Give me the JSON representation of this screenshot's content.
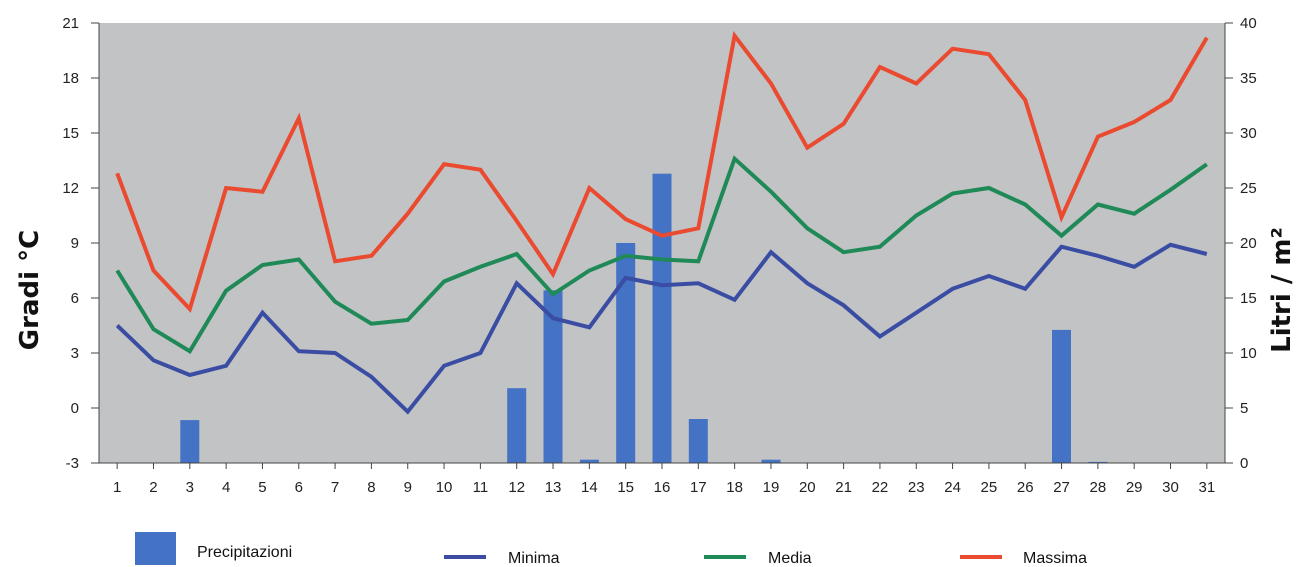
{
  "chart_data": {
    "type": "bar+line",
    "categories": [
      "1",
      "2",
      "3",
      "4",
      "5",
      "6",
      "7",
      "8",
      "9",
      "10",
      "11",
      "12",
      "13",
      "14",
      "15",
      "16",
      "17",
      "18",
      "19",
      "20",
      "21",
      "22",
      "23",
      "24",
      "25",
      "26",
      "27",
      "28",
      "29",
      "30",
      "31"
    ],
    "ylabel_left": "Gradi °C",
    "ylabel_right": "Litri / m²",
    "ylim_left": [
      -3,
      21
    ],
    "yticks_left": [
      "-3",
      "0",
      "3",
      "6",
      "9",
      "12",
      "15",
      "18",
      "21"
    ],
    "ylim_right": [
      0,
      40
    ],
    "yticks_right": [
      "0",
      "5",
      "10",
      "15",
      "20",
      "25",
      "30",
      "35",
      "40"
    ],
    "grid": false,
    "plot_background": "#c2c3c5",
    "bars": {
      "name": "Precipitazioni",
      "color": "#4472c4",
      "axis": "right",
      "values": [
        0,
        0,
        3.9,
        0,
        0,
        0,
        0,
        0,
        0,
        0,
        0,
        6.8,
        15.7,
        0.3,
        20,
        26.3,
        4,
        0,
        0.3,
        0,
        0,
        0,
        0,
        0,
        0,
        0,
        12.1,
        0.1,
        0,
        0,
        0
      ]
    },
    "series": [
      {
        "name": "Minima",
        "color": "#3a4da3",
        "axis": "left",
        "values": [
          4.5,
          2.6,
          1.8,
          2.3,
          5.2,
          3.1,
          3.0,
          1.7,
          -0.2,
          2.3,
          3.0,
          6.8,
          4.9,
          4.4,
          7.1,
          6.7,
          6.8,
          5.9,
          8.5,
          6.8,
          5.6,
          3.9,
          5.2,
          6.5,
          7.2,
          6.5,
          8.8,
          8.3,
          7.7,
          8.9,
          8.4
        ]
      },
      {
        "name": "Media",
        "color": "#1f8a57",
        "axis": "left",
        "values": [
          7.5,
          4.3,
          3.1,
          6.4,
          7.8,
          8.1,
          5.8,
          4.6,
          4.8,
          6.9,
          7.7,
          8.4,
          6.2,
          7.5,
          8.3,
          8.1,
          8.0,
          13.6,
          11.8,
          9.8,
          8.5,
          8.8,
          10.5,
          11.7,
          12.0,
          11.1,
          9.4,
          11.1,
          10.6,
          11.9,
          13.3
        ]
      },
      {
        "name": "Massima",
        "color": "#ea4a2f",
        "axis": "left",
        "values": [
          12.8,
          7.5,
          5.4,
          12.0,
          11.8,
          15.8,
          8.0,
          8.3,
          10.6,
          13.3,
          13.0,
          10.2,
          7.3,
          12.0,
          10.3,
          9.4,
          9.8,
          20.3,
          17.7,
          14.2,
          15.5,
          18.6,
          17.7,
          19.6,
          19.3,
          16.8,
          10.4,
          14.8,
          15.6,
          16.8,
          20.2
        ]
      }
    ]
  }
}
